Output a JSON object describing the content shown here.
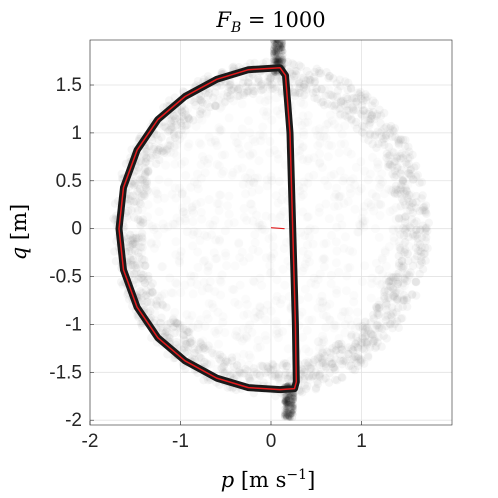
{
  "chart_data": {
    "type": "scatter",
    "title": {
      "symbol": "F",
      "subscript": "B",
      "rest": " = 1000"
    },
    "xlabel": {
      "var": "p",
      "unit_prefix": "[m s",
      "unit_exp": "−1",
      "unit_suffix": "]"
    },
    "ylabel": {
      "var": "q",
      "unit": "[m]"
    },
    "xlim": [
      -2,
      2
    ],
    "ylim": [
      -2.05,
      1.97
    ],
    "xticks": [
      -2,
      -1,
      0,
      1
    ],
    "xtick_labels": [
      "-2",
      "-1",
      "0",
      "1"
    ],
    "yticks": [
      -2,
      -1.5,
      -1,
      -0.5,
      0,
      0.5,
      1,
      1.5
    ],
    "ytick_labels": [
      "-2",
      "-1.5",
      "-1",
      "-0.5",
      "0",
      "0.5",
      "1",
      "1.5"
    ],
    "grid": true,
    "series": [
      {
        "kind": "ensemble-cloud",
        "color": "#808080",
        "radius": 1.7
      },
      {
        "kind": "outer-boundary",
        "color": "#1a1a1a",
        "path": [
          [
            0.1,
            1.68
          ],
          [
            -0.25,
            1.66
          ],
          [
            -0.6,
            1.56
          ],
          [
            -0.95,
            1.38
          ],
          [
            -1.25,
            1.14
          ],
          [
            -1.48,
            0.82
          ],
          [
            -1.63,
            0.43
          ],
          [
            -1.68,
            0.0
          ],
          [
            -1.63,
            -0.43
          ],
          [
            -1.48,
            -0.82
          ],
          [
            -1.25,
            -1.14
          ],
          [
            -0.95,
            -1.38
          ],
          [
            -0.6,
            -1.56
          ],
          [
            -0.25,
            -1.66
          ],
          [
            0.1,
            -1.68
          ],
          [
            0.26,
            -1.67
          ],
          [
            0.28,
            -1.6
          ],
          [
            0.27,
            -1.0
          ],
          [
            0.24,
            0.0
          ],
          [
            0.21,
            1.0
          ],
          [
            0.16,
            1.6
          ],
          [
            0.1,
            1.68
          ]
        ]
      },
      {
        "kind": "mean-trajectory",
        "color": "#e31a1c"
      }
    ]
  }
}
